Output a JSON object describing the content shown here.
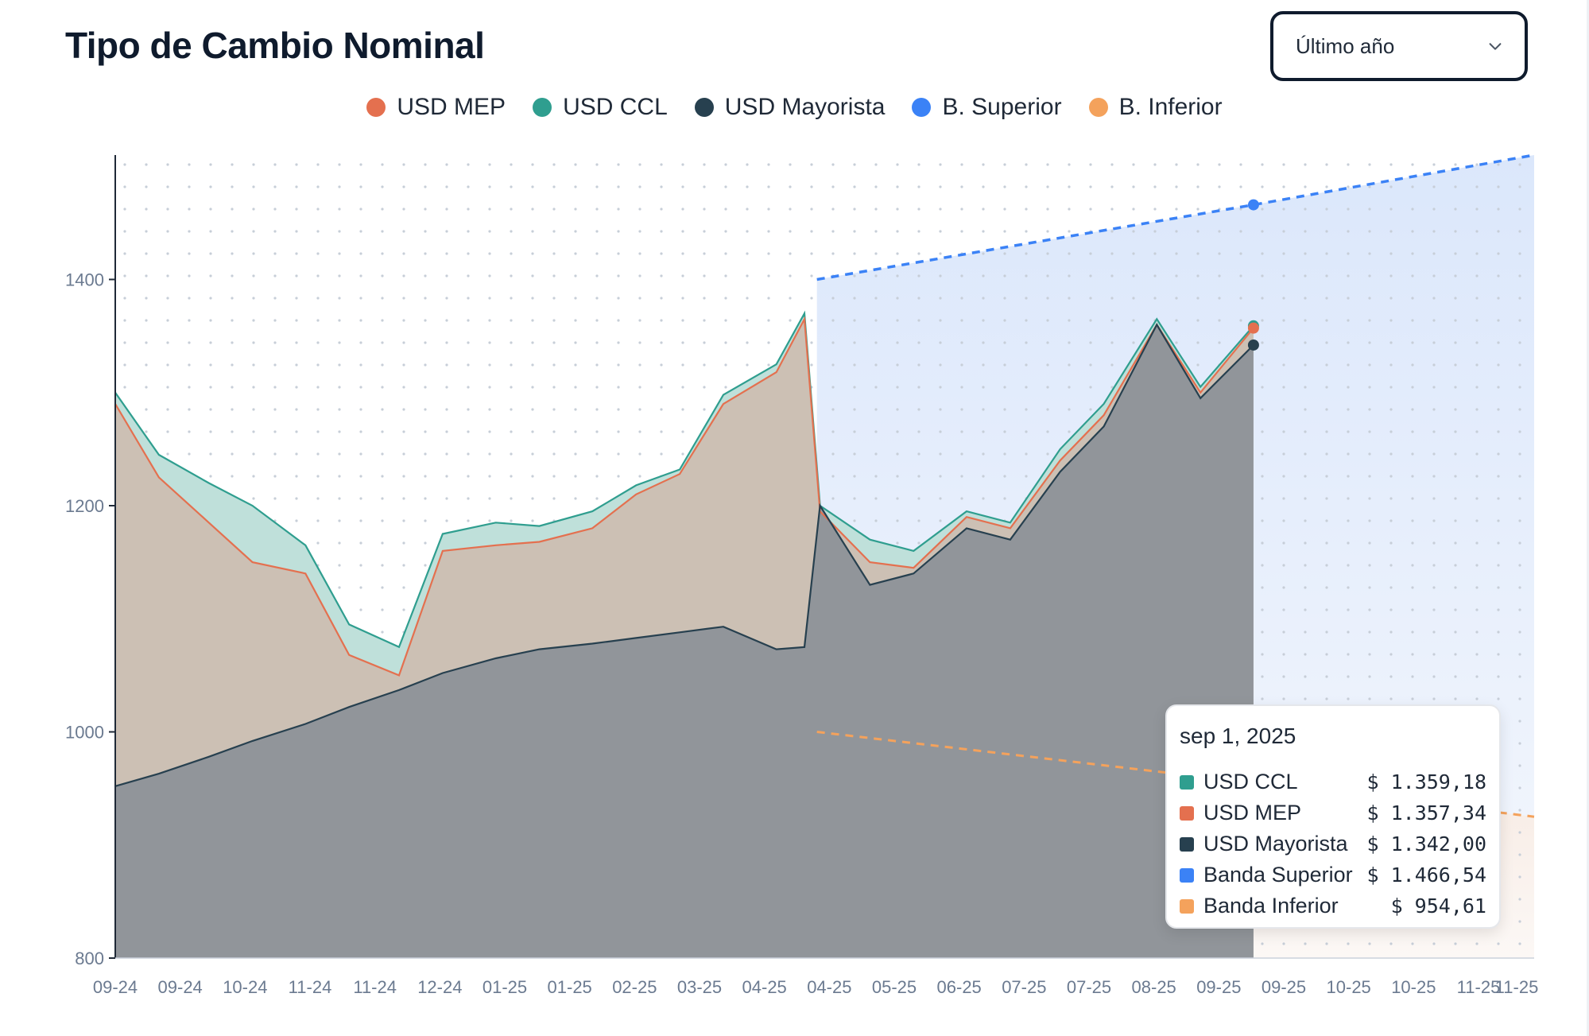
{
  "header": {
    "title": "Tipo de Cambio Nominal",
    "range_selector": {
      "selected": "Último año"
    }
  },
  "legend": [
    {
      "label": "USD MEP",
      "color": "#e4704f"
    },
    {
      "label": "USD CCL",
      "color": "#2f9e8f"
    },
    {
      "label": "USD Mayorista",
      "color": "#27404f"
    },
    {
      "label": "B. Superior",
      "color": "#3b82f6"
    },
    {
      "label": "B. Inferior",
      "color": "#f4a25c"
    }
  ],
  "tooltip": {
    "date": "sep 1, 2025",
    "rows": [
      {
        "name": "USD CCL",
        "value": "$ 1.359,18",
        "color": "#2f9e8f"
      },
      {
        "name": "USD MEP",
        "value": "$ 1.357,34",
        "color": "#e4704f"
      },
      {
        "name": "USD Mayorista",
        "value": "$ 1.342,00",
        "color": "#27404f"
      },
      {
        "name": "Banda Superior",
        "value": "$ 1.466,54",
        "color": "#3b82f6"
      },
      {
        "name": "Banda Inferior",
        "value": "$ 954,61",
        "color": "#f4a25c"
      }
    ]
  },
  "chart_data": {
    "type": "area",
    "ylim": [
      800,
      1510
    ],
    "y_ticks": [
      800,
      1000,
      1200,
      1400
    ],
    "grid": "dotted",
    "x_tick_labels": [
      "09-24",
      "09-24",
      "10-24",
      "11-24",
      "11-24",
      "12-24",
      "01-25",
      "01-25",
      "02-25",
      "03-25",
      "04-25",
      "04-25",
      "05-25",
      "06-25",
      "07-25",
      "07-25",
      "08-25",
      "09-25",
      "09-25",
      "10-25",
      "10-25",
      "11-25",
      "11-25"
    ],
    "x": [
      "2024-09-01",
      "2024-09-15",
      "2024-10-01",
      "2024-10-15",
      "2024-11-01",
      "2024-11-15",
      "2024-12-01",
      "2024-12-15",
      "2025-01-01",
      "2025-01-15",
      "2025-02-01",
      "2025-02-15",
      "2025-03-01",
      "2025-03-15",
      "2025-04-01",
      "2025-04-10",
      "2025-04-15",
      "2025-05-01",
      "2025-05-15",
      "2025-06-01",
      "2025-06-15",
      "2025-07-01",
      "2025-07-15",
      "2025-08-01",
      "2025-08-15",
      "2025-09-01"
    ],
    "series": [
      {
        "name": "USD CCL",
        "color": "#2f9e8f",
        "values": [
          1300,
          1245,
          1220,
          1200,
          1165,
          1095,
          1075,
          1175,
          1185,
          1182,
          1195,
          1218,
          1232,
          1298,
          1325,
          1370,
          1200,
          1170,
          1160,
          1195,
          1185,
          1250,
          1290,
          1365,
          1305,
          1359
        ]
      },
      {
        "name": "USD MEP",
        "color": "#e4704f",
        "values": [
          1290,
          1225,
          1185,
          1150,
          1140,
          1068,
          1050,
          1160,
          1165,
          1168,
          1180,
          1210,
          1228,
          1290,
          1318,
          1365,
          1195,
          1150,
          1145,
          1190,
          1180,
          1240,
          1280,
          1360,
          1300,
          1357
        ]
      },
      {
        "name": "USD Mayorista",
        "color": "#27404f",
        "values": [
          952,
          963,
          978,
          992,
          1007,
          1022,
          1037,
          1052,
          1065,
          1073,
          1078,
          1083,
          1088,
          1093,
          1073,
          1075,
          1200,
          1130,
          1140,
          1180,
          1170,
          1230,
          1270,
          1360,
          1295,
          1342
        ]
      },
      {
        "name": "Banda Superior",
        "color": "#3b82f6",
        "x": [
          "2025-04-14",
          "2025-09-01",
          "2025-11-30"
        ],
        "values": [
          1400,
          1466,
          1510
        ]
      },
      {
        "name": "Banda Inferior",
        "color": "#f4a25c",
        "x": [
          "2025-04-14",
          "2025-09-01",
          "2025-11-30"
        ],
        "values": [
          1000,
          955,
          925
        ]
      }
    ]
  }
}
